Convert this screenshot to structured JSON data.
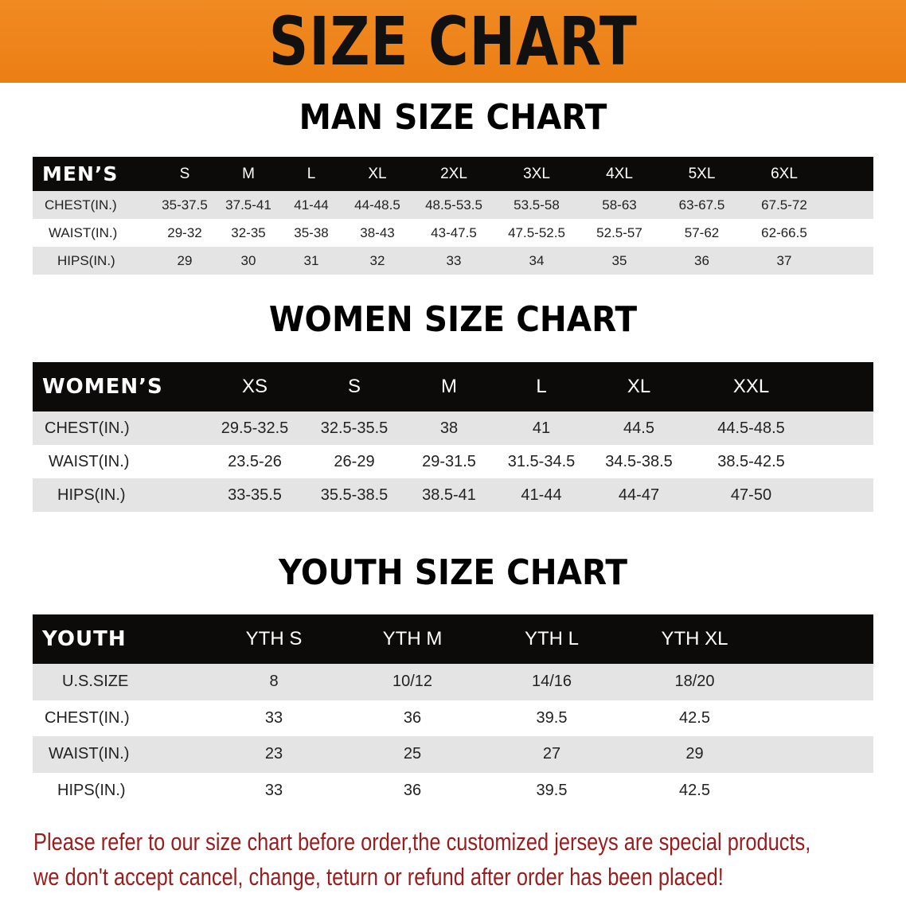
{
  "banner": {
    "title": "SIZE CHART",
    "color": "#f08a22"
  },
  "men": {
    "title": "MAN SIZE CHART",
    "header_label": "MEN’S",
    "sizes": [
      "S",
      "M",
      "L",
      "XL",
      "2XL",
      "3XL",
      "4XL",
      "5XL",
      "6XL"
    ],
    "rows": [
      {
        "label": "CHEST(IN.)",
        "values": [
          "35-37.5",
          "37.5-41",
          "41-44",
          "44-48.5",
          "48.5-53.5",
          "53.5-58",
          "58-63",
          "63-67.5",
          "67.5-72"
        ]
      },
      {
        "label": "WAIST(IN.)",
        "values": [
          "29-32",
          "32-35",
          "35-38",
          "38-43",
          "43-47.5",
          "47.5-52.5",
          "52.5-57",
          "57-62",
          "62-66.5"
        ]
      },
      {
        "label": "HIPS(IN.)",
        "values": [
          "29",
          "30",
          "31",
          "32",
          "33",
          "34",
          "35",
          "36",
          "37"
        ]
      }
    ]
  },
  "women": {
    "title": "WOMEN SIZE CHART",
    "header_label": "WOMEN’S",
    "sizes": [
      "XS",
      "S",
      "M",
      "L",
      "XL",
      "XXL"
    ],
    "rows": [
      {
        "label": "CHEST(IN.)",
        "values": [
          "29.5-32.5",
          "32.5-35.5",
          "38",
          "41",
          "44.5",
          "44.5-48.5"
        ]
      },
      {
        "label": "WAIST(IN.)",
        "values": [
          "23.5-26",
          "26-29",
          "29-31.5",
          "31.5-34.5",
          "34.5-38.5",
          "38.5-42.5"
        ]
      },
      {
        "label": "HIPS(IN.)",
        "values": [
          "33-35.5",
          "35.5-38.5",
          "38.5-41",
          "41-44",
          "44-47",
          "47-50"
        ]
      }
    ]
  },
  "youth": {
    "title": "YOUTH SIZE CHART",
    "header_label": "YOUTH",
    "sizes": [
      "YTH S",
      "YTH M",
      "YTH L",
      "YTH XL"
    ],
    "rows": [
      {
        "label": "U.S.SIZE",
        "values": [
          "8",
          "10/12",
          "14/16",
          "18/20"
        ]
      },
      {
        "label": "CHEST(IN.)",
        "values": [
          "33",
          "36",
          "39.5",
          "42.5"
        ]
      },
      {
        "label": "WAIST(IN.)",
        "values": [
          "23",
          "25",
          "27",
          "29"
        ]
      },
      {
        "label": "HIPS(IN.)",
        "values": [
          "33",
          "36",
          "39.5",
          "42.5"
        ]
      }
    ]
  },
  "notice": {
    "line1": "Please refer to our size chart before order,the customized jerseys are special products,",
    "line2": "we don't accept cancel, change, teturn or refund after order has been placed!",
    "color": "#9b1c1c"
  }
}
